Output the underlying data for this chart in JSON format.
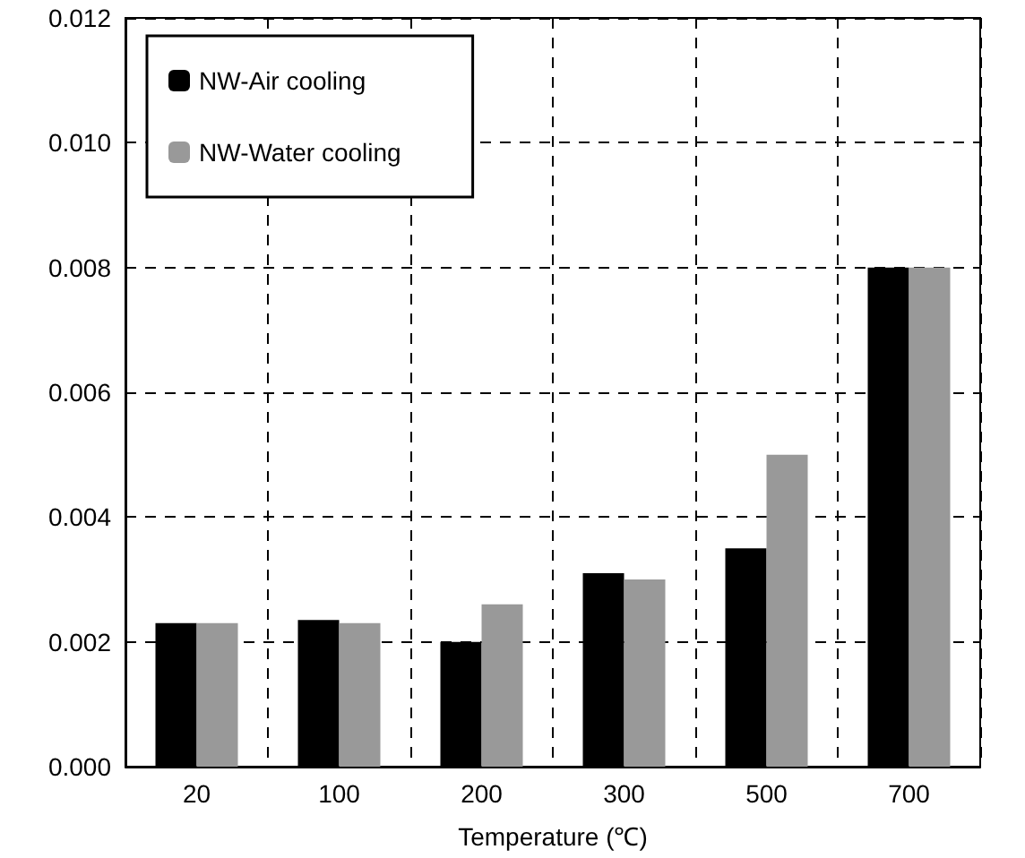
{
  "chart_data": {
    "type": "bar",
    "xlabel": "Temperature (℃)",
    "categories": [
      "20",
      "100",
      "200",
      "300",
      "500",
      "700"
    ],
    "series": [
      {
        "name": "NW-Air cooling",
        "color": "#000000",
        "values": [
          0.0023,
          0.00235,
          0.002,
          0.0031,
          0.0035,
          0.008
        ]
      },
      {
        "name": "NW-Water cooling",
        "color": "#999999",
        "values": [
          0.0023,
          0.0023,
          0.0026,
          0.003,
          0.005,
          0.008
        ]
      }
    ],
    "ylim": [
      0,
      0.012
    ],
    "yticks": [
      {
        "value": 0,
        "label": "0.000"
      },
      {
        "value": 0.002,
        "label": "0.002"
      },
      {
        "value": 0.004,
        "label": "0.004"
      },
      {
        "value": 0.006,
        "label": "0.006"
      },
      {
        "value": 0.008,
        "label": "0.008"
      },
      {
        "value": 0.01,
        "label": "0.010"
      },
      {
        "value": 0.012,
        "label": "0.012"
      }
    ],
    "grid": true,
    "legend": "top left"
  }
}
